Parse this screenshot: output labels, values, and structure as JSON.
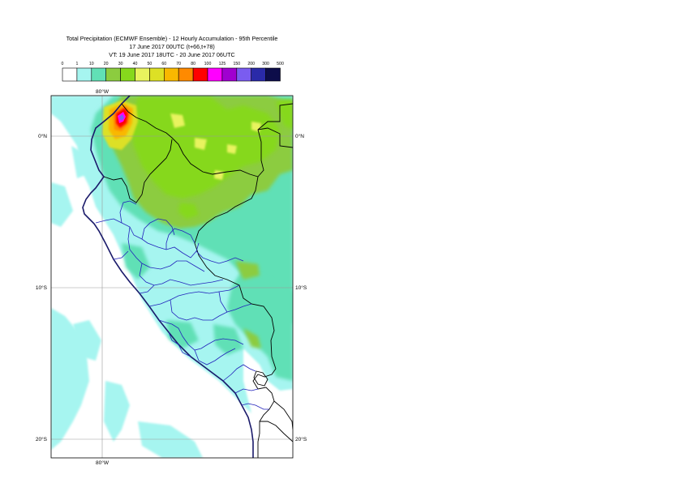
{
  "title": {
    "line1": "Total Precipitation (ECMWF Ensemble) - 12 Hourly Accumulation - 95th Percentile",
    "line2": "17 June 2017 00UTC (t+66,t+78)",
    "line3": "VT: 19 June 2017 18UTC - 20 June 2017 06UTC"
  },
  "legend": {
    "thresholds": [
      "0",
      "1",
      "10",
      "20",
      "30",
      "40",
      "50",
      "60",
      "70",
      "80",
      "100",
      "125",
      "150",
      "200",
      "300",
      "500"
    ],
    "colors": [
      "#ffffff",
      "#a6f5f0",
      "#61e0b6",
      "#8ccc3f",
      "#86d81c",
      "#e8f35e",
      "#dde025",
      "#f9b800",
      "#ff8a00",
      "#ff0000",
      "#ff00ff",
      "#a000d0",
      "#7a5cf0",
      "#2a2aa8",
      "#0d0d4a"
    ]
  },
  "map": {
    "lon_label_top": "80°W",
    "lon_label_bottom": "80°W",
    "lat_labels": [
      {
        "left": "0°N",
        "right": "0°N"
      },
      {
        "left": "10°S",
        "right": "10°S"
      },
      {
        "left": "20°S",
        "right": "20°S"
      }
    ]
  }
}
